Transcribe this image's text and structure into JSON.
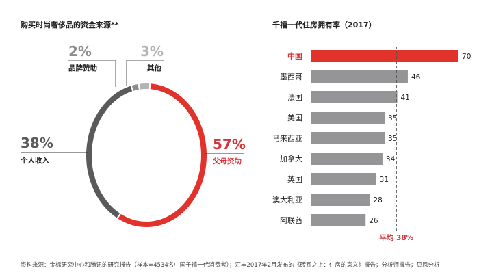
{
  "chart_data": [
    {
      "type": "pie",
      "donut": true,
      "title": "购买时尚奢侈品的资金来源**",
      "slices": [
        {
          "label": "父母资助",
          "value": 57,
          "text": "57%",
          "color": "#e1322b"
        },
        {
          "label": "个人收入",
          "value": 38,
          "text": "38%",
          "color": "#5a5a5c"
        },
        {
          "label": "品牌赞助",
          "value": 2,
          "text": "2%",
          "color": "#8d8d8f"
        },
        {
          "label": "其他",
          "value": 3,
          "text": "3%",
          "color": "#b3b3b5"
        }
      ]
    },
    {
      "type": "bar",
      "orientation": "horizontal",
      "title": "千禧一代住房拥有率（2017）",
      "categories": [
        "中国",
        "墨西哥",
        "法国",
        "美国",
        "马来西亚",
        "加拿大",
        "英国",
        "澳大利亚",
        "阿联酋"
      ],
      "values": [
        70,
        46,
        41,
        35,
        35,
        34,
        31,
        28,
        26
      ],
      "highlight": "中国",
      "highlight_color": "#e1322b",
      "bar_color": "#959597",
      "reference_line": {
        "value": 38,
        "label": "平均 38%",
        "style": "dashed"
      }
    }
  ],
  "source": "资料来源：金标研究中心和腾讯的研究报告（样本=4534名中国千禧一代消费者）；汇丰2017年2月发布的《砖瓦之上：住房的意义》报告；分析师报告；贝恩分析"
}
